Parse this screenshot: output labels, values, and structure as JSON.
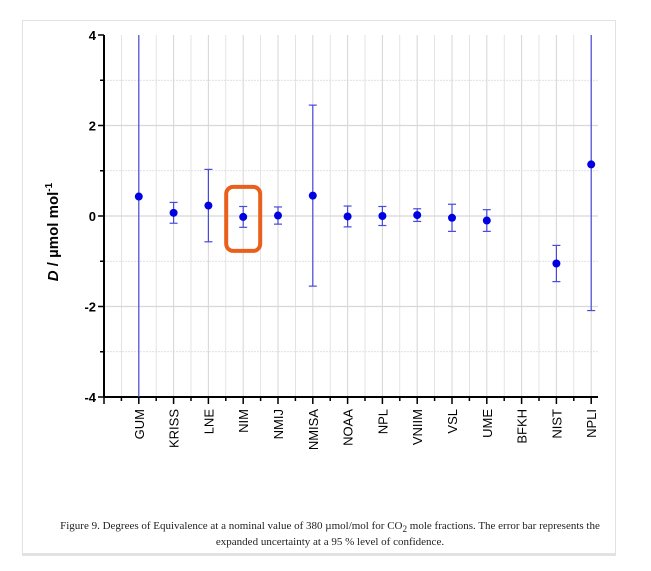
{
  "chart_data": {
    "type": "scatter",
    "title": "",
    "ylabel_italic": "D",
    "ylabel_rest": " / µmol mol",
    "ylabel_sup": "-1",
    "xlabel": "",
    "ylim": [
      -4,
      4
    ],
    "yticks": [
      "4",
      "2",
      "0",
      "-2",
      "-4"
    ],
    "ytick_values": [
      4,
      2,
      0,
      -2,
      -4
    ],
    "grid": true,
    "categories": [
      "GUM",
      "KRISS",
      "LNE",
      "NIM",
      "NMIJ",
      "NMISA",
      "NOAA",
      "NPL",
      "VNIIM",
      "VSL",
      "UME",
      "BFKH",
      "NIST",
      "NPLI"
    ],
    "values": [
      0.43,
      0.07,
      0.23,
      -0.02,
      0.01,
      0.45,
      -0.01,
      0.0,
      0.02,
      -0.04,
      -0.1,
      null,
      -1.05,
      1.14
    ],
    "uncertainty": [
      4.5,
      0.23,
      0.8,
      0.23,
      0.19,
      2.0,
      0.23,
      0.21,
      0.14,
      0.3,
      0.24,
      null,
      0.4,
      3.23
    ],
    "highlighted": "NIM",
    "colors": {
      "points": "#0000e0",
      "error_bars": "#4a4ad8",
      "highlight": "#e8601c",
      "grid": "#d8d8d8"
    }
  },
  "caption": {
    "prefix": "Figure 9.  Degrees of Equivalence at a nominal value of 380 µmol/mol for CO",
    "sub": "2",
    "suffix": " mole fractions. The error bar represents the expanded uncertainty at a 95 % level of confidence."
  }
}
